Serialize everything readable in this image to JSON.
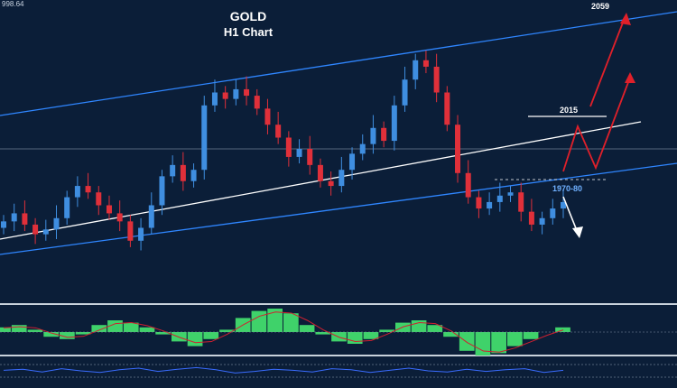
{
  "chart": {
    "price_label": "998.64",
    "title_line1": "GOLD",
    "title_line2": "H1 Chart",
    "levels": {
      "label_2059": "2059",
      "label_2015": "2015",
      "label_1970_80": "1970-80"
    },
    "colors": {
      "background": "#0b1e38",
      "bull_candle": "#3f8ee0",
      "bear_candle": "#e0303a",
      "channel": "#2f86ff",
      "trend_line": "#ffffff",
      "projection_up": "#e0202a",
      "projection_down": "#ffffff",
      "histogram": "#3fd26a",
      "signal_line": "#d02030",
      "oscillator": "#3a6cff"
    }
  },
  "chart_data": {
    "type": "candlestick",
    "title": "GOLD H1 Chart",
    "annotations": [
      "2059",
      "2015",
      "1970-80"
    ],
    "price_close_series": [
      1960,
      1965,
      1958,
      1952,
      1955,
      1962,
      1975,
      1982,
      1978,
      1970,
      1965,
      1960,
      1948,
      1956,
      1970,
      1988,
      1995,
      1985,
      1992,
      2032,
      2040,
      2036,
      2042,
      2038,
      2030,
      2020,
      2012,
      2000,
      2005,
      1995,
      1985,
      1982,
      1992,
      2002,
      2008,
      2018,
      2010,
      2032,
      2048,
      2060,
      2056,
      2040,
      2020,
      1990,
      1975,
      1968,
      1972,
      1976,
      1978,
      1966,
      1958,
      1962,
      1968,
      1972
    ],
    "histogram_series": [
      0.2,
      0.3,
      0.1,
      -0.2,
      -0.3,
      -0.1,
      0.3,
      0.5,
      0.4,
      0.2,
      -0.1,
      -0.4,
      -0.6,
      -0.3,
      0.1,
      0.6,
      0.9,
      1.0,
      0.8,
      0.3,
      -0.1,
      -0.4,
      -0.5,
      -0.3,
      0.1,
      0.4,
      0.5,
      0.3,
      -0.2,
      -0.8,
      -1.0,
      -0.9,
      -0.6,
      -0.3,
      0.0,
      0.2
    ],
    "oscillator_series": [
      0.1,
      0.3,
      -0.2,
      0.4,
      0.0,
      -0.3,
      0.2,
      0.5,
      -0.1,
      0.3,
      0.6,
      0.2,
      -0.4,
      -0.1,
      0.3,
      0.1,
      -0.2,
      0.4,
      0.2,
      -0.3,
      0.1,
      0.5,
      0.0,
      -0.2,
      0.3,
      -0.1,
      0.2,
      0.4,
      -0.3,
      0.1
    ]
  }
}
